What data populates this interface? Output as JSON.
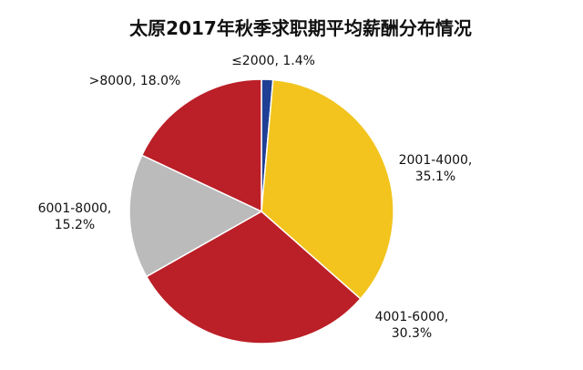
{
  "chart_data": {
    "type": "pie",
    "title": "太原2017年秋季求职期平均薪酬分布情况",
    "start_angle_deg": 0,
    "direction": "clockwise",
    "slices": [
      {
        "category": "≤2000",
        "value": 1.4,
        "value_label": "1.4%",
        "color": "#1f3f94"
      },
      {
        "category": "2001-4000",
        "value": 35.1,
        "value_label": "35.1%",
        "color": "#f2c41d"
      },
      {
        "category": "4001-6000",
        "value": 30.3,
        "value_label": "30.3%",
        "color": "#bb1f27"
      },
      {
        "category": "6001-8000",
        "value": 15.2,
        "value_label": "15.2%",
        "color": "#bbbbbb"
      },
      {
        "category": ">8000",
        "value": 18.0,
        "value_label": "18.0%",
        "color": "#bb1f27"
      }
    ],
    "legend": "none"
  }
}
